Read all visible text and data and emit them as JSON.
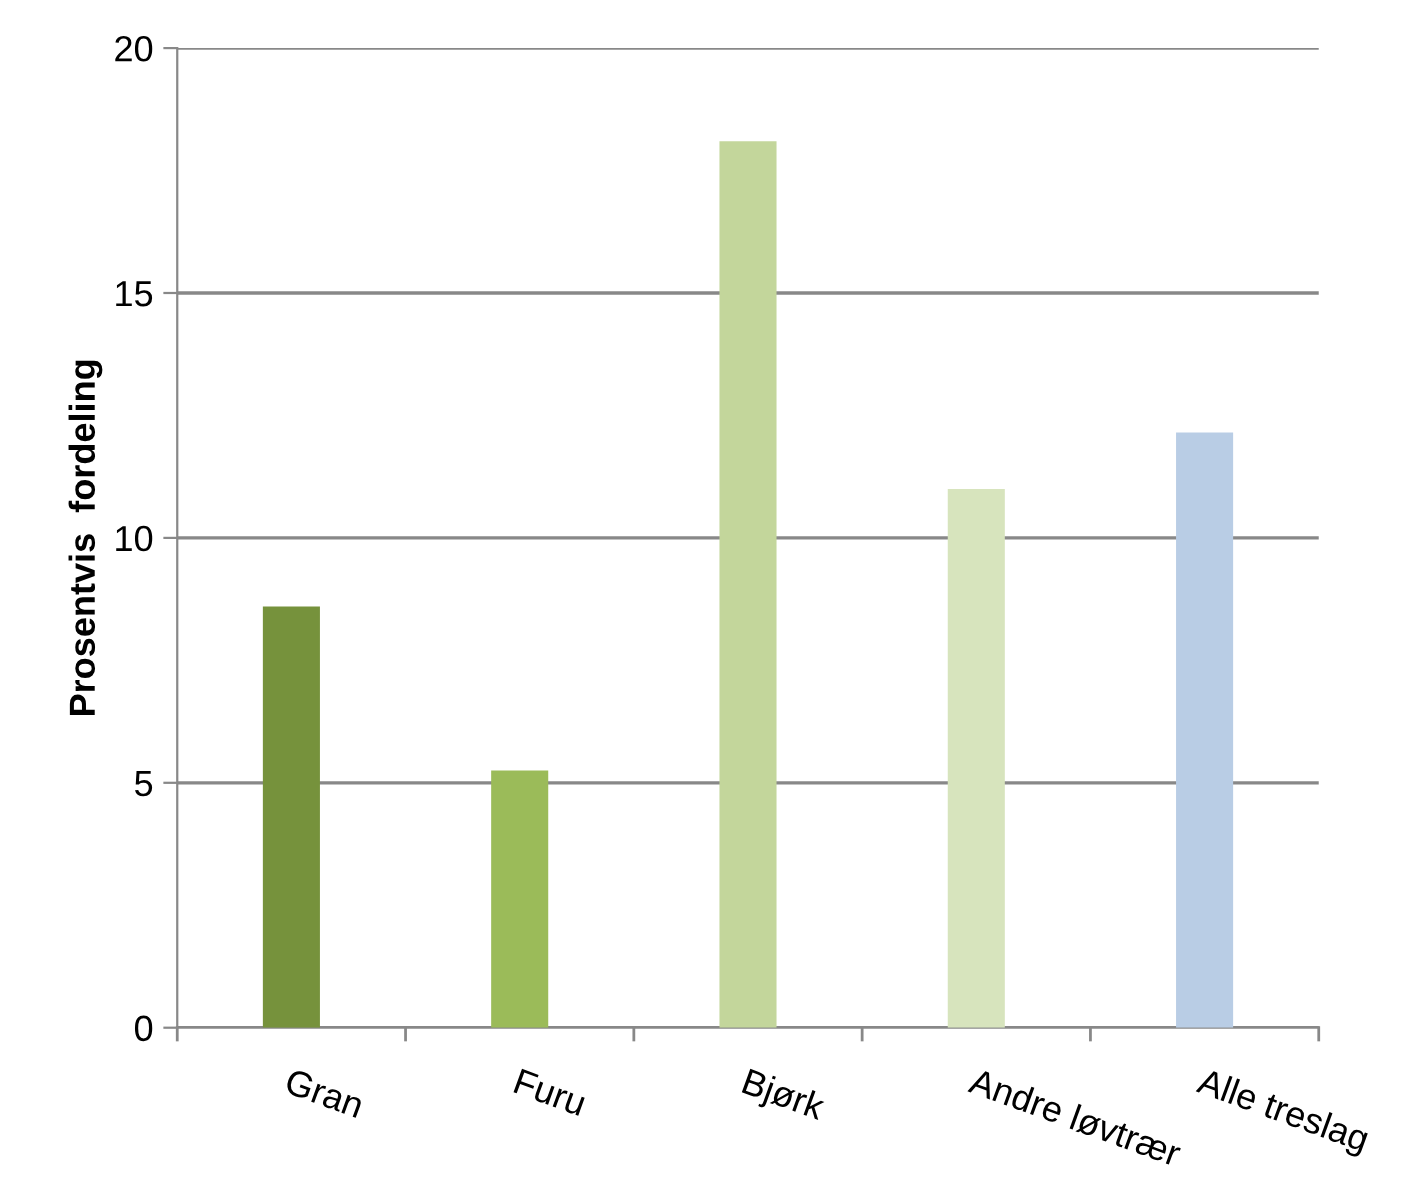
{
  "chart_data": {
    "type": "bar",
    "ylabel": "Prosentvis  fordeling",
    "categories": [
      "Gran",
      "Furu",
      "Bjørk",
      "Andre løvtrær",
      "Alle treslag"
    ],
    "values": [
      8.6,
      5.25,
      18.1,
      11.0,
      12.15
    ],
    "colors": [
      "#76923c",
      "#9bbb59",
      "#c3d69b",
      "#d7e4bd",
      "#b9cde5"
    ],
    "ylim": [
      0,
      20
    ],
    "yticks": [
      0,
      5,
      10,
      15,
      20
    ],
    "grid": "y"
  }
}
